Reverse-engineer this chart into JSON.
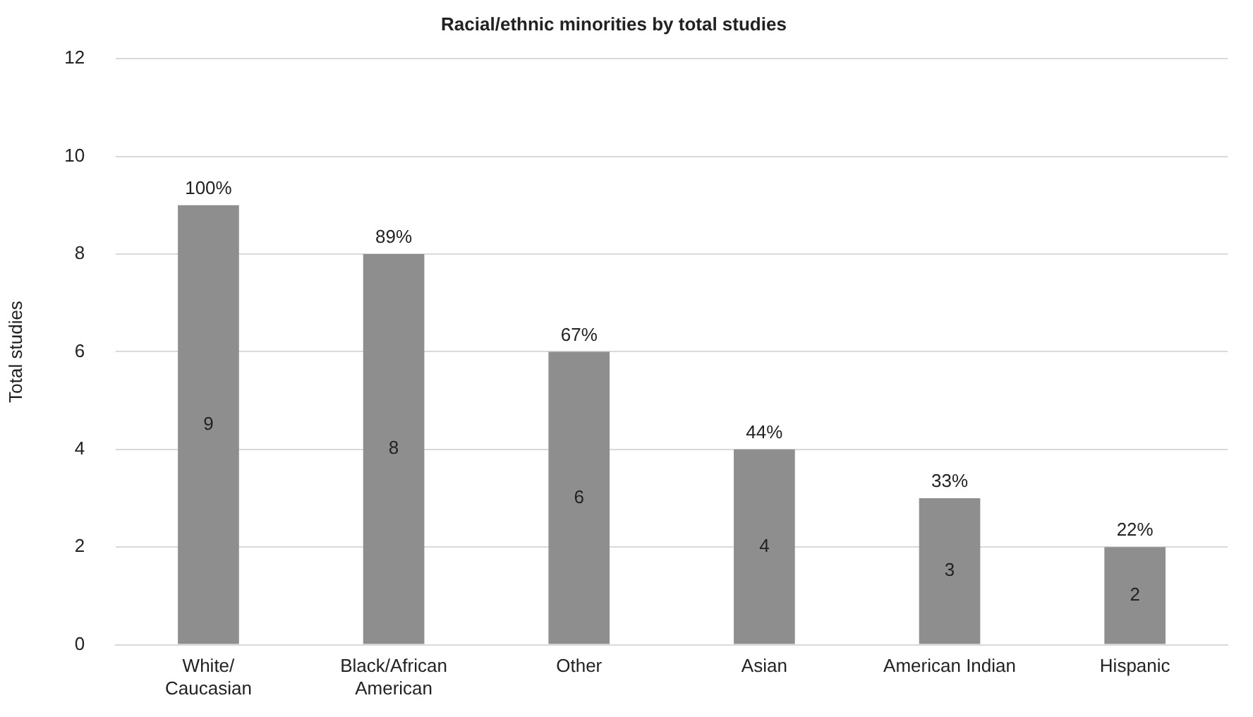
{
  "chart_data": {
    "type": "bar",
    "title": "Racial/ethnic minorities by total studies",
    "ylabel": "Total studies",
    "categories": [
      "White/\nCaucasian",
      "Black/African\nAmerican",
      "Other",
      "Asian",
      "American Indian",
      "Hispanic"
    ],
    "values": [
      9,
      8,
      6,
      4,
      3,
      2
    ],
    "color": "#8e8e8e",
    "annotations": [
      {
        "text": "100%",
        "x": "White/\nCaucasian",
        "y": 9
      },
      {
        "text": "89%",
        "x": "Black/African\nAmerican",
        "y": 8
      },
      {
        "text": "67%",
        "x": "Other",
        "y": 6
      },
      {
        "text": "44%",
        "x": "Asian",
        "y": 4
      },
      {
        "text": "33%",
        "x": "American Indian",
        "y": 3
      },
      {
        "text": "22%",
        "x": "Hispanic",
        "y": 2
      }
    ],
    "data_labels": true,
    "ylim": [
      0,
      12
    ],
    "yticks": [
      0,
      2,
      4,
      6,
      8,
      10,
      12
    ],
    "grid": "y",
    "legend": false
  }
}
